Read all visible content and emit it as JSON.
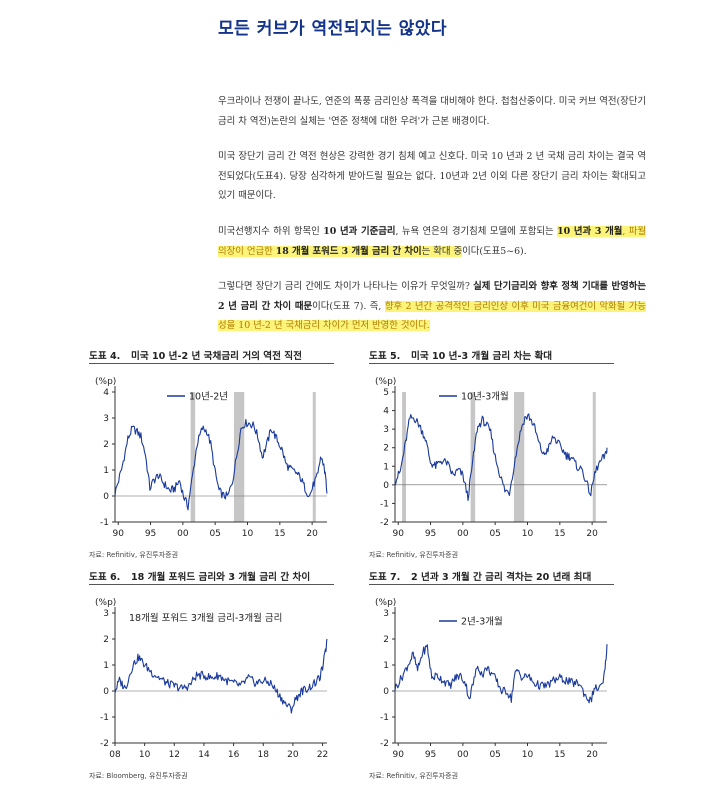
{
  "title": "모든 커브가 역전되지는 않았다",
  "paragraphs": {
    "p1": "우크라이나 전쟁이 끝나도, 연준의 폭풍 금리인상 폭격을 대비해야 한다. 첩첩산중이다. 미국 커브 역전(장단기 금리 차 역전)논란의 실체는 '연준 정책에 대한 우려'가 근본 배경이다.",
    "p2": "미국 장단기 금리 간 역전 현상은 강력한 경기 침체 예고 신호다. 미국 10 년과 2 년 국채 금리 차이는 결국 역전되었다(도표4). 당장 심각하게 받아드릴 필요는 없다. 10년과 2년 이외 다른 장단기 금리 차이는 확대되고 있기 때문이다.",
    "p3a": "미국선행지수 하위 항목인 ",
    "p3b": "10 년과 기준금리",
    "p3c": ", 뉴욕 연은의 경기침체 모델에 포함되는 ",
    "p3d": "10 년과 3 개월",
    "p3e": ", 파월의장이 언급한 ",
    "p3f": "18 개월 포워드 3 개월 금리 간 차이",
    "p3g": "는 확대 중",
    "p3h": "이다(도표5~6).",
    "p4a": "그렇다면 장단기 금리 간에도 차이가 나타나는 이유가 무엇일까? ",
    "p4b": "실제 단기금리와 향후 정책 기대를 반영하는 2 년 금리 간 차이 때문",
    "p4c": "이다(도표 7). 즉, ",
    "p4d": "향후 2 년간 공격적인 금리인상 이후 미국 금융여건이 악화될 가능성을 10 년-2 년 국채금리 차이가 먼저 반영한 것이다."
  },
  "figures": [
    {
      "num": "도표 4.",
      "title": "미국 10 년-2 년 국채금리 거의 역전 직전",
      "unit": "(%p)",
      "legend": "10년-2년",
      "source": "자료: Refinitiv, 유진투자증권",
      "chart_data": {
        "type": "line",
        "xlabel": "",
        "ylabel": "(%p)",
        "x_ticks": [
          "90",
          "95",
          "00",
          "05",
          "10",
          "15",
          "20"
        ],
        "y_ticks": [
          "4",
          "3",
          "2",
          "1",
          "0",
          "-1"
        ],
        "ylim": [
          -1,
          4
        ],
        "xlim": [
          1989.5,
          2022.3
        ],
        "recessions": [
          [
            2001.2,
            2001.9
          ],
          [
            2007.9,
            2009.5
          ],
          [
            2020.1,
            2020.5
          ]
        ],
        "series": [
          {
            "name": "10년-2년",
            "x": [
              1989.5,
              1990.5,
              1991.5,
              1992.2,
              1992.8,
              1993.5,
              1994.2,
              1994.9,
              1995.5,
              1996.2,
              1997,
              1998,
              1998.8,
              1999.5,
              2000.1,
              2000.8,
              2001.5,
              2002.2,
              2003,
              2003.7,
              2004.3,
              2005,
              2005.6,
              2006.3,
              2007,
              2007.7,
              2008.3,
              2009,
              2009.6,
              2010.2,
              2011,
              2011.7,
              2012.3,
              2013,
              2013.7,
              2014.5,
              2015.3,
              2016,
              2016.8,
              2017.5,
              2018.2,
              2018.9,
              2019.6,
              2020.3,
              2020.9,
              2021.3,
              2021.8,
              2022.1,
              2022.3
            ],
            "values": [
              0.1,
              1.0,
              2.2,
              2.6,
              2.5,
              2.3,
              1.6,
              0.3,
              0.6,
              0.8,
              0.5,
              0.2,
              0.3,
              0.6,
              0.0,
              -0.4,
              0.8,
              2.0,
              2.6,
              2.5,
              2.0,
              0.9,
              0.2,
              0.0,
              0.0,
              0.6,
              1.5,
              2.6,
              2.8,
              2.8,
              2.7,
              2.2,
              1.5,
              2.0,
              2.6,
              2.2,
              1.8,
              1.2,
              1.0,
              0.9,
              0.7,
              0.3,
              0.0,
              0.5,
              0.8,
              1.5,
              1.2,
              0.7,
              0.1
            ]
          }
        ]
      }
    },
    {
      "num": "도표 5.",
      "title": "미국 10 년-3 개월 금리 차는 확대",
      "unit": "(%p)",
      "legend": "10년-3개월",
      "source": "자료: Refinitiv, 유진투자증권",
      "chart_data": {
        "type": "line",
        "xlabel": "",
        "ylabel": "(%p)",
        "x_ticks": [
          "90",
          "95",
          "00",
          "05",
          "10",
          "15",
          "20"
        ],
        "y_ticks": [
          "5",
          "4",
          "3",
          "2",
          "1",
          "0",
          "-1",
          "-2"
        ],
        "ylim": [
          -2,
          5
        ],
        "xlim": [
          1989.5,
          2022.3
        ],
        "recessions": [
          [
            1990.6,
            1991.2
          ],
          [
            2001.2,
            2001.9
          ],
          [
            2007.9,
            2009.5
          ],
          [
            2020.1,
            2020.5
          ]
        ],
        "series": [
          {
            "name": "10년-3개월",
            "x": [
              1989.5,
              1990.3,
              1991,
              1991.8,
              1992.5,
              1993.3,
              1994.2,
              1995,
              1995.8,
              1996.6,
              1997.5,
              1998.5,
              1999.3,
              2000,
              2000.8,
              2001.5,
              2002.2,
              2003,
              2003.7,
              2004.3,
              2005,
              2005.7,
              2006.5,
              2007.2,
              2007.8,
              2008.4,
              2009,
              2009.6,
              2010.2,
              2011,
              2011.8,
              2012.5,
              2013.3,
              2014,
              2015,
              2016,
              2016.8,
              2017.6,
              2018.5,
              2019.2,
              2019.8,
              2020.4,
              2021,
              2021.6,
              2022.1,
              2022.3
            ],
            "values": [
              0.2,
              0.7,
              2.0,
              3.6,
              3.6,
              3.2,
              2.5,
              1.2,
              1.0,
              1.3,
              1.2,
              0.5,
              0.8,
              0.5,
              -0.7,
              1.2,
              3.0,
              3.5,
              3.2,
              2.8,
              1.5,
              0.6,
              -0.3,
              -0.4,
              0.8,
              2.0,
              3.0,
              3.6,
              3.7,
              3.2,
              2.2,
              1.6,
              2.0,
              2.6,
              2.1,
              1.6,
              1.5,
              1.0,
              0.8,
              0.0,
              -0.5,
              0.6,
              1.1,
              1.4,
              1.6,
              2.0
            ]
          }
        ]
      }
    },
    {
      "num": "도표 6.",
      "title": "18 개월 포워드 금리와 3 개월 금리 간 차이",
      "unit": "(%p)",
      "legend": "18개월 포워드 3개월 금리-3개월 금리",
      "source": "자료: Bloomberg, 유진투자증권",
      "chart_data": {
        "type": "line",
        "xlabel": "",
        "ylabel": "(%p)",
        "x_ticks": [
          "08",
          "10",
          "12",
          "14",
          "16",
          "18",
          "20",
          "22"
        ],
        "y_ticks": [
          "3",
          "2",
          "1",
          "0",
          "-1",
          "-2"
        ],
        "ylim": [
          -2,
          3
        ],
        "xlim": [
          2008,
          2022.3
        ],
        "series": [
          {
            "name": "18개월 포워드 3개월 금리-3개월 금리",
            "x": [
              2008,
              2008.3,
              2008.7,
              2009.2,
              2009.6,
              2010,
              2010.5,
              2011,
              2011.5,
              2012,
              2012.5,
              2013,
              2013.5,
              2014,
              2014.5,
              2015,
              2015.5,
              2016,
              2016.5,
              2017,
              2017.5,
              2018,
              2018.5,
              2019,
              2019.5,
              2019.9,
              2020.2,
              2020.6,
              2021,
              2021.5,
              2021.8,
              2022,
              2022.2,
              2022.3
            ],
            "values": [
              0.0,
              0.4,
              0.1,
              1.0,
              1.3,
              1.0,
              0.7,
              0.5,
              0.3,
              0.2,
              0.1,
              0.2,
              0.6,
              0.6,
              0.5,
              0.6,
              0.4,
              0.3,
              0.2,
              0.5,
              0.3,
              0.4,
              0.3,
              -0.1,
              -0.5,
              -0.7,
              -0.3,
              0.0,
              0.1,
              0.3,
              0.5,
              0.9,
              1.5,
              2.0
            ]
          }
        ]
      }
    },
    {
      "num": "도표 7.",
      "title": "2 년과 3 개월 간 금리 격차는 20 년래 최대",
      "unit": "(%p)",
      "legend": "2년-3개월",
      "source": "자료: Refinitiv, 유진투자증권",
      "chart_data": {
        "type": "line",
        "xlabel": "",
        "ylabel": "(%p)",
        "x_ticks": [
          "90",
          "95",
          "00",
          "05",
          "10",
          "15",
          "20"
        ],
        "y_ticks": [
          "3",
          "2",
          "1",
          "0",
          "-1",
          "-2"
        ],
        "ylim": [
          -2,
          3
        ],
        "xlim": [
          1989.5,
          2022.3
        ],
        "series": [
          {
            "name": "2년-3개월",
            "x": [
              1989.5,
              1990.5,
              1991.5,
              1992.3,
              1993,
              1993.8,
              1994.5,
              1995.2,
              1996,
              1997,
              1998,
              1998.8,
              1999.6,
              2000.4,
              2001,
              2001.6,
              2002.3,
              2003,
              2003.7,
              2004.4,
              2005.2,
              2006,
              2006.8,
              2007.5,
              2008,
              2008.5,
              2009.2,
              2010,
              2011,
              2012,
              2013,
              2014,
              2015,
              2016,
              2017,
              2018,
              2019,
              2019.8,
              2020.3,
              2021,
              2021.6,
              2022,
              2022.3
            ],
            "values": [
              0.1,
              0.5,
              1.0,
              1.4,
              0.8,
              1.5,
              1.7,
              0.5,
              0.6,
              0.4,
              0.2,
              0.5,
              0.6,
              0.3,
              -0.3,
              0.3,
              1.0,
              0.6,
              0.9,
              0.7,
              0.4,
              0.0,
              0.0,
              -0.3,
              0.6,
              0.8,
              0.5,
              0.6,
              0.3,
              0.2,
              0.2,
              0.4,
              0.5,
              0.4,
              0.3,
              0.3,
              -0.2,
              -0.4,
              0.1,
              0.1,
              0.2,
              0.8,
              1.8
            ]
          }
        ]
      }
    }
  ],
  "colors": {
    "title": "#14338a",
    "line": "#1a3a9c",
    "recession": "#c6c6c6",
    "highlight": "#fbf37a"
  }
}
